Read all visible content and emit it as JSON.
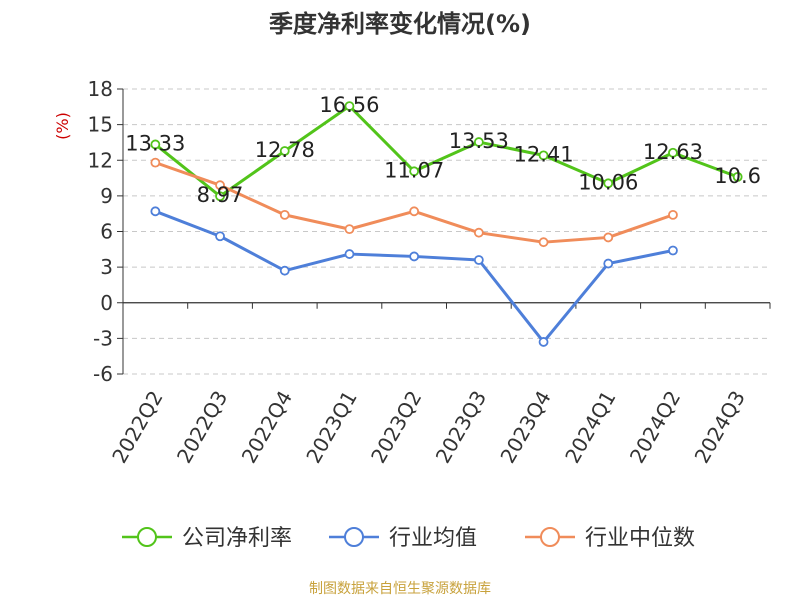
{
  "chart_data": {
    "type": "line",
    "title": "季度净利率变化情况(%)",
    "ylabel": "(%)",
    "categories": [
      "2022Q2",
      "2022Q3",
      "2022Q4",
      "2023Q1",
      "2023Q2",
      "2023Q3",
      "2023Q4",
      "2024Q1",
      "2024Q2",
      "2024Q3"
    ],
    "ylim": [
      -6,
      18
    ],
    "yticks": [
      -6,
      -3,
      0,
      3,
      6,
      9,
      12,
      15,
      18
    ],
    "grid": true,
    "legend_position": "bottom",
    "series": [
      {
        "name": "公司净利率",
        "color": "#52c41a",
        "values": [
          13.33,
          8.97,
          12.78,
          16.56,
          11.07,
          13.53,
          12.41,
          10.06,
          12.63,
          10.6
        ],
        "labels": [
          "13.33",
          "8.97",
          "12.78",
          "16.56",
          "11.07",
          "13.53",
          "12.41",
          "10.06",
          "12.63",
          "10.6"
        ]
      },
      {
        "name": "行业均值",
        "color": "#4e7fd9",
        "values": [
          7.7,
          5.6,
          2.7,
          4.1,
          3.9,
          3.6,
          -3.3,
          3.3,
          4.4,
          null
        ]
      },
      {
        "name": "行业中位数",
        "color": "#f08c5a",
        "values": [
          11.8,
          9.9,
          7.4,
          6.2,
          7.7,
          5.9,
          5.1,
          5.5,
          7.4,
          null
        ]
      }
    ]
  },
  "source": "制图数据来自恒生聚源数据库"
}
